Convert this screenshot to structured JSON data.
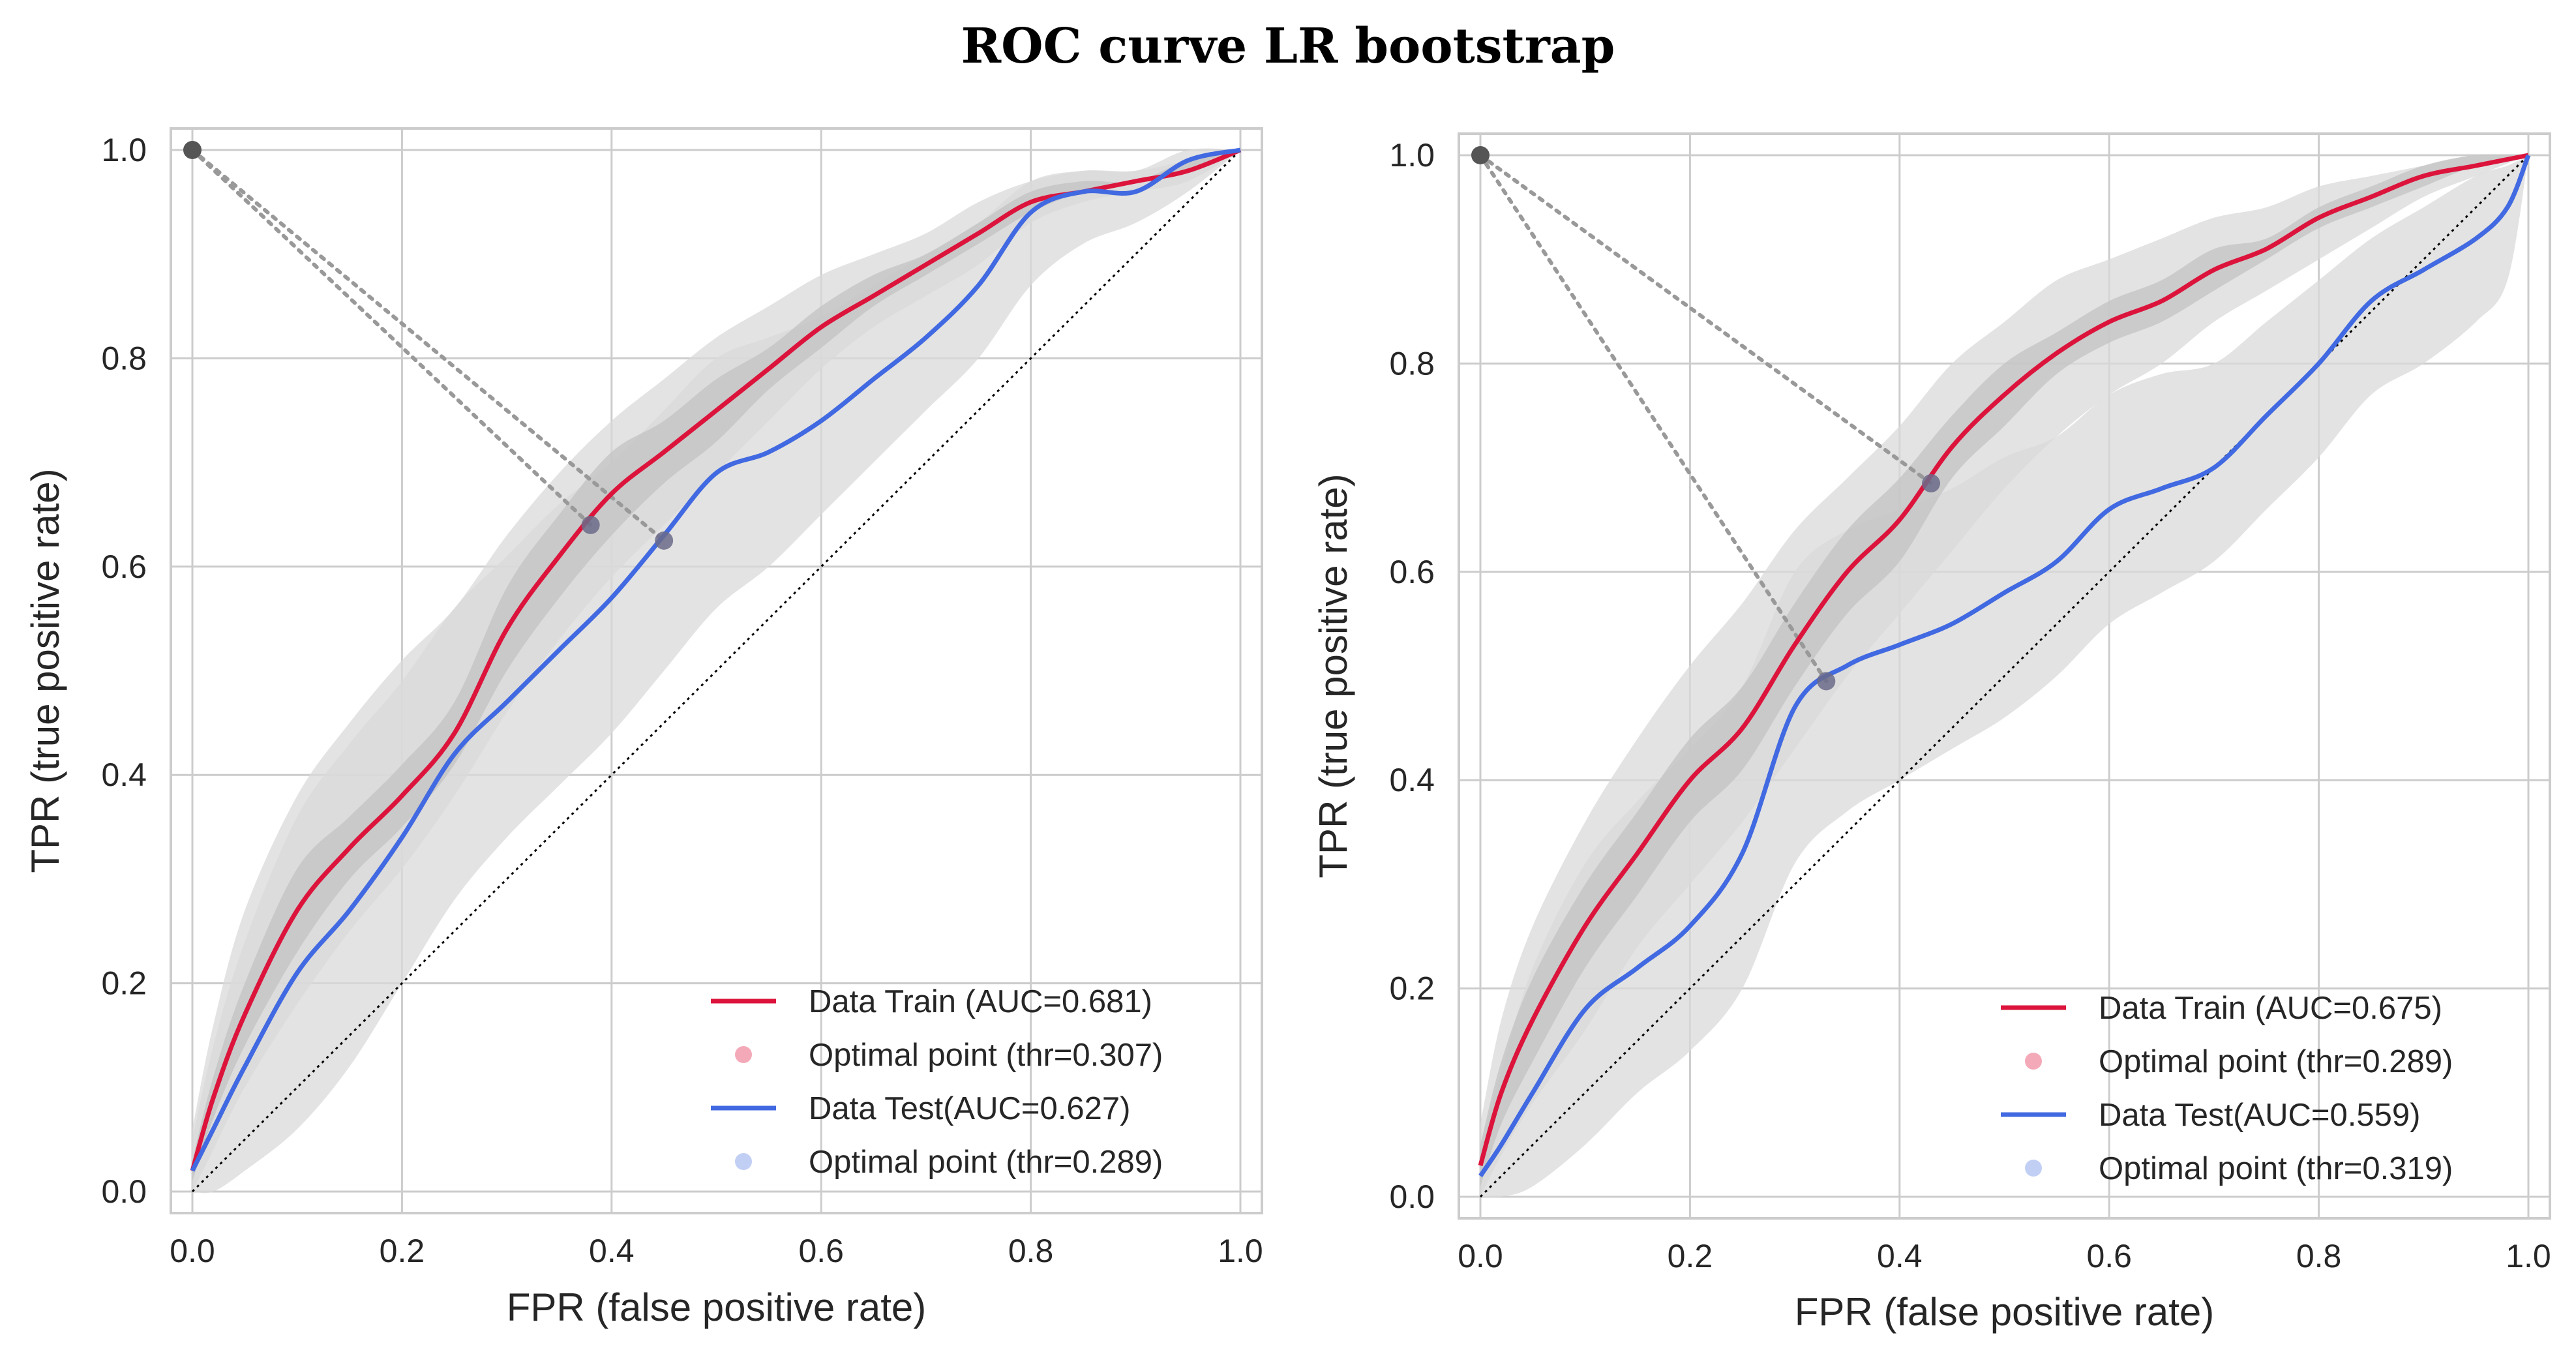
{
  "figure": {
    "title": "ROC curve LR bootstrap"
  },
  "chart_data": [
    {
      "type": "line",
      "title": "",
      "xlabel": "FPR (false positive rate)",
      "ylabel": "TPR (true positive rate)",
      "xlim": [
        0,
        1
      ],
      "ylim": [
        0,
        1
      ],
      "ticks": [
        "0.0",
        "0.2",
        "0.4",
        "0.6",
        "0.8",
        "1.0"
      ],
      "grid": true,
      "legend_position": "lower-right",
      "colors": {
        "train": "#dc143c",
        "test": "#4169e1",
        "band": "#d9d9d9",
        "band_inner": "#c4c4c4",
        "diagonal": "#000000",
        "corner": "#555555"
      },
      "series": [
        {
          "name": "Data Train (AUC=0.681)",
          "role": "train",
          "x": [
            0,
            0.02,
            0.05,
            0.1,
            0.15,
            0.2,
            0.25,
            0.3,
            0.35,
            0.4,
            0.45,
            0.5,
            0.55,
            0.6,
            0.65,
            0.7,
            0.75,
            0.8,
            0.85,
            0.9,
            0.95,
            1.0
          ],
          "y": [
            0.02,
            0.09,
            0.17,
            0.27,
            0.33,
            0.38,
            0.44,
            0.54,
            0.61,
            0.67,
            0.71,
            0.75,
            0.79,
            0.83,
            0.86,
            0.89,
            0.92,
            0.95,
            0.96,
            0.97,
            0.98,
            1.0
          ],
          "band_lo": [
            0.0,
            0.04,
            0.1,
            0.18,
            0.25,
            0.31,
            0.38,
            0.46,
            0.53,
            0.59,
            0.64,
            0.69,
            0.74,
            0.79,
            0.83,
            0.86,
            0.89,
            0.93,
            0.95,
            0.96,
            0.97,
            1.0
          ],
          "band_hi": [
            0.06,
            0.16,
            0.27,
            0.38,
            0.45,
            0.51,
            0.56,
            0.63,
            0.69,
            0.74,
            0.78,
            0.82,
            0.85,
            0.88,
            0.9,
            0.92,
            0.95,
            0.97,
            0.98,
            0.98,
            0.99,
            1.0
          ],
          "inner_lo": [
            0.01,
            0.07,
            0.14,
            0.23,
            0.3,
            0.35,
            0.41,
            0.5,
            0.57,
            0.63,
            0.68,
            0.72,
            0.77,
            0.81,
            0.85,
            0.88,
            0.91,
            0.94,
            0.96,
            0.97,
            0.98,
            1.0
          ],
          "inner_hi": [
            0.03,
            0.11,
            0.2,
            0.31,
            0.36,
            0.41,
            0.47,
            0.58,
            0.65,
            0.71,
            0.74,
            0.78,
            0.81,
            0.85,
            0.88,
            0.9,
            0.93,
            0.96,
            0.97,
            0.97,
            0.99,
            1.0
          ]
        },
        {
          "name": "Data Test(AUC=0.627)",
          "role": "test",
          "x": [
            0,
            0.02,
            0.05,
            0.1,
            0.15,
            0.2,
            0.25,
            0.3,
            0.35,
            0.4,
            0.45,
            0.5,
            0.55,
            0.6,
            0.65,
            0.7,
            0.75,
            0.8,
            0.85,
            0.9,
            0.95,
            1.0
          ],
          "y": [
            0.02,
            0.06,
            0.12,
            0.21,
            0.27,
            0.34,
            0.42,
            0.47,
            0.52,
            0.57,
            0.63,
            0.69,
            0.71,
            0.74,
            0.78,
            0.82,
            0.87,
            0.94,
            0.96,
            0.96,
            0.99,
            1.0
          ],
          "band_lo": [
            0.0,
            0.0,
            0.02,
            0.06,
            0.12,
            0.2,
            0.28,
            0.34,
            0.39,
            0.44,
            0.5,
            0.56,
            0.6,
            0.65,
            0.7,
            0.75,
            0.8,
            0.87,
            0.91,
            0.93,
            0.96,
            1.0
          ],
          "band_hi": [
            0.05,
            0.14,
            0.24,
            0.36,
            0.43,
            0.49,
            0.56,
            0.61,
            0.66,
            0.7,
            0.75,
            0.8,
            0.82,
            0.84,
            0.87,
            0.9,
            0.93,
            0.97,
            0.98,
            0.98,
            1.0,
            1.0
          ],
          "inner_lo": null,
          "inner_hi": null
        }
      ],
      "optimal_points": [
        {
          "label": "Optimal point (thr=0.307)",
          "role": "train",
          "x": 0.38,
          "y": 0.64
        },
        {
          "label": "Optimal point (thr=0.289)",
          "role": "test",
          "x": 0.45,
          "y": 0.625
        }
      ],
      "corner_point": {
        "x": 0.0,
        "y": 1.0
      },
      "legend": [
        "Data Train (AUC=0.681)",
        "Optimal point (thr=0.307)",
        "Data Test(AUC=0.627)",
        "Optimal point (thr=0.289)"
      ]
    },
    {
      "type": "line",
      "title": "",
      "xlabel": "FPR (false positive rate)",
      "ylabel": "TPR (true positive rate)",
      "xlim": [
        0,
        1
      ],
      "ylim": [
        0,
        1
      ],
      "ticks": [
        "0.0",
        "0.2",
        "0.4",
        "0.6",
        "0.8",
        "1.0"
      ],
      "grid": true,
      "legend_position": "lower-right",
      "colors": {
        "train": "#dc143c",
        "test": "#4169e1",
        "band": "#d9d9d9",
        "band_inner": "#c4c4c4",
        "diagonal": "#000000",
        "corner": "#555555"
      },
      "series": [
        {
          "name": "Data Train (AUC=0.675)",
          "role": "train",
          "x": [
            0,
            0.02,
            0.05,
            0.1,
            0.15,
            0.2,
            0.25,
            0.3,
            0.35,
            0.4,
            0.45,
            0.5,
            0.55,
            0.6,
            0.65,
            0.7,
            0.75,
            0.8,
            0.85,
            0.9,
            0.95,
            1.0
          ],
          "y": [
            0.03,
            0.1,
            0.17,
            0.26,
            0.33,
            0.4,
            0.45,
            0.53,
            0.6,
            0.65,
            0.72,
            0.77,
            0.81,
            0.84,
            0.86,
            0.89,
            0.91,
            0.94,
            0.96,
            0.98,
            0.99,
            1.0
          ],
          "band_lo": [
            0.0,
            0.04,
            0.09,
            0.16,
            0.24,
            0.3,
            0.36,
            0.43,
            0.5,
            0.56,
            0.62,
            0.68,
            0.73,
            0.77,
            0.8,
            0.84,
            0.87,
            0.9,
            0.93,
            0.96,
            0.98,
            1.0
          ],
          "band_hi": [
            0.07,
            0.17,
            0.26,
            0.36,
            0.44,
            0.51,
            0.57,
            0.64,
            0.69,
            0.74,
            0.8,
            0.84,
            0.88,
            0.9,
            0.92,
            0.94,
            0.95,
            0.97,
            0.98,
            0.99,
            1.0,
            1.0
          ],
          "inner_lo": [
            0.01,
            0.07,
            0.13,
            0.22,
            0.29,
            0.36,
            0.41,
            0.49,
            0.56,
            0.61,
            0.69,
            0.74,
            0.79,
            0.82,
            0.84,
            0.87,
            0.9,
            0.93,
            0.95,
            0.97,
            0.99,
            1.0
          ],
          "inner_hi": [
            0.05,
            0.13,
            0.21,
            0.3,
            0.37,
            0.44,
            0.49,
            0.57,
            0.64,
            0.69,
            0.75,
            0.8,
            0.83,
            0.86,
            0.88,
            0.91,
            0.92,
            0.95,
            0.97,
            0.99,
            1.0,
            1.0
          ]
        },
        {
          "name": "Data Test(AUC=0.559)",
          "role": "test",
          "x": [
            0,
            0.02,
            0.05,
            0.1,
            0.15,
            0.2,
            0.25,
            0.3,
            0.35,
            0.4,
            0.45,
            0.5,
            0.55,
            0.6,
            0.65,
            0.7,
            0.75,
            0.8,
            0.85,
            0.9,
            0.95,
            0.98,
            1.0
          ],
          "y": [
            0.02,
            0.05,
            0.1,
            0.18,
            0.22,
            0.26,
            0.33,
            0.47,
            0.51,
            0.53,
            0.55,
            0.58,
            0.61,
            0.66,
            0.68,
            0.7,
            0.75,
            0.8,
            0.86,
            0.89,
            0.92,
            0.95,
            1.0
          ],
          "band_lo": [
            0.0,
            0.0,
            0.01,
            0.05,
            0.1,
            0.14,
            0.2,
            0.32,
            0.37,
            0.4,
            0.43,
            0.46,
            0.5,
            0.55,
            0.58,
            0.61,
            0.66,
            0.71,
            0.77,
            0.8,
            0.84,
            0.88,
            1.0
          ],
          "band_hi": [
            0.05,
            0.12,
            0.22,
            0.32,
            0.38,
            0.43,
            0.49,
            0.6,
            0.64,
            0.66,
            0.68,
            0.71,
            0.73,
            0.77,
            0.79,
            0.8,
            0.84,
            0.88,
            0.92,
            0.95,
            0.98,
            0.99,
            1.0
          ],
          "inner_lo": null,
          "inner_hi": null
        }
      ],
      "optimal_points": [
        {
          "label": "Optimal point (thr=0.289)",
          "role": "train",
          "x": 0.43,
          "y": 0.685
        },
        {
          "label": "Optimal point (thr=0.319)",
          "role": "test",
          "x": 0.33,
          "y": 0.495
        }
      ],
      "corner_point": {
        "x": 0.0,
        "y": 1.0
      },
      "legend": [
        "Data Train (AUC=0.675)",
        "Optimal point (thr=0.289)",
        "Data Test(AUC=0.559)",
        "Optimal point (thr=0.319)"
      ]
    }
  ]
}
